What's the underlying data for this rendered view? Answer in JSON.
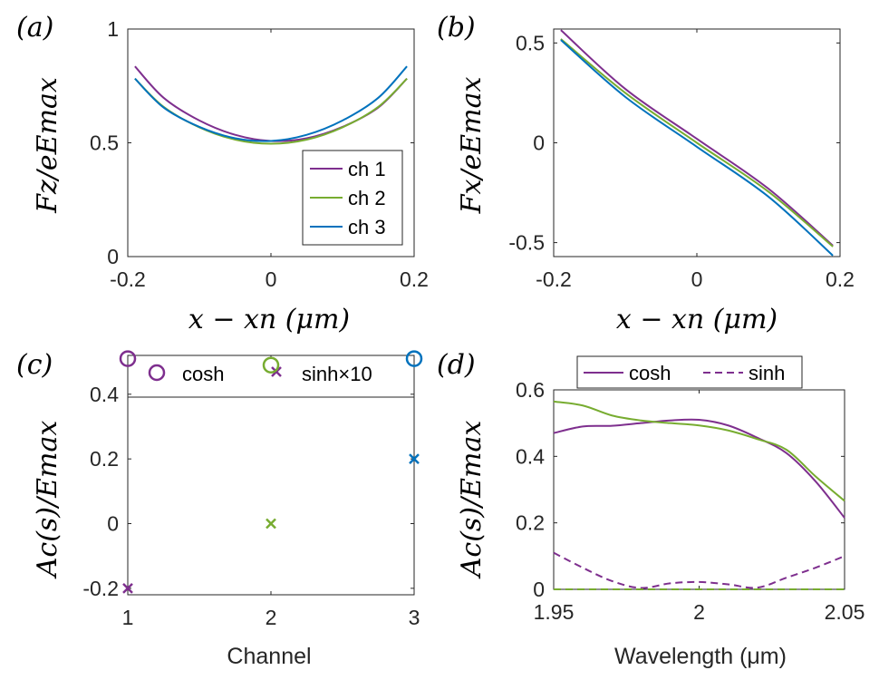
{
  "colors": {
    "ch1": "#7E2F8E",
    "ch2": "#77AC30",
    "ch3": "#0072BD",
    "axis": "#262626"
  },
  "chart_data": [
    {
      "id": "a",
      "panel_label": "(a)",
      "type": "line",
      "ylabel": "F_z/eE_max",
      "ylabel_display": "Fz/eEmax",
      "xlabel": "x − x_n (μm)",
      "xlabel_display": "x − xn (μm)",
      "xlim": [
        -0.2,
        0.2
      ],
      "ylim": [
        0,
        1
      ],
      "xticks": [
        -0.2,
        0,
        0.2
      ],
      "xtick_labels": [
        "-0.2",
        "0",
        "0.2"
      ],
      "yticks": [
        0,
        0.5,
        1
      ],
      "ytick_labels": [
        "0",
        "0.5",
        "1"
      ],
      "legend": {
        "placement": "bottom-right",
        "entries": [
          "ch 1",
          "ch 2",
          "ch 3"
        ]
      },
      "series": [
        {
          "name": "ch 1",
          "color": "ch1",
          "x": [
            -0.19,
            -0.15,
            -0.1,
            -0.05,
            0,
            0.05,
            0.1,
            0.15,
            0.19
          ],
          "y": [
            0.836,
            0.698,
            0.598,
            0.535,
            0.508,
            0.52,
            0.57,
            0.655,
            0.782
          ]
        },
        {
          "name": "ch 2",
          "color": "ch2",
          "x": [
            -0.19,
            -0.15,
            -0.1,
            -0.05,
            0,
            0.05,
            0.1,
            0.15,
            0.19
          ],
          "y": [
            0.782,
            0.658,
            0.568,
            0.514,
            0.496,
            0.514,
            0.568,
            0.658,
            0.782
          ]
        },
        {
          "name": "ch 3",
          "color": "ch3",
          "x": [
            -0.19,
            -0.15,
            -0.1,
            -0.05,
            0,
            0.05,
            0.1,
            0.15,
            0.19
          ],
          "y": [
            0.782,
            0.655,
            0.57,
            0.52,
            0.508,
            0.535,
            0.598,
            0.698,
            0.836
          ]
        }
      ]
    },
    {
      "id": "b",
      "panel_label": "(b)",
      "type": "line",
      "ylabel": "F_x/eE_max",
      "ylabel_display": "Fx/eEmax",
      "xlabel": "x − x_n (μm)",
      "xlabel_display": "x − xn (μm)",
      "xlim": [
        -0.2,
        0.2
      ],
      "ylim": [
        -0.57,
        0.57
      ],
      "xticks": [
        -0.2,
        0,
        0.2
      ],
      "xtick_labels": [
        "-0.2",
        "0",
        "0.2"
      ],
      "yticks": [
        -0.5,
        0,
        0.5
      ],
      "ytick_labels": [
        "-0.5",
        "0",
        "0.5"
      ],
      "series": [
        {
          "name": "ch 1",
          "color": "ch1",
          "x": [
            -0.19,
            -0.1,
            0,
            0.1,
            0.19
          ],
          "y": [
            0.565,
            0.27,
            0.02,
            -0.23,
            -0.515
          ]
        },
        {
          "name": "ch 2",
          "color": "ch2",
          "x": [
            -0.19,
            -0.1,
            0,
            0.1,
            0.19
          ],
          "y": [
            0.52,
            0.25,
            0.0,
            -0.245,
            -0.52
          ]
        },
        {
          "name": "ch 3",
          "color": "ch3",
          "x": [
            -0.19,
            -0.1,
            0,
            0.1,
            0.19
          ],
          "y": [
            0.515,
            0.23,
            -0.02,
            -0.27,
            -0.565
          ]
        }
      ]
    },
    {
      "id": "c",
      "panel_label": "(c)",
      "type": "scatter",
      "ylabel": "A_c(s)/E_max",
      "ylabel_display": "Ac(s)/Emax",
      "xlabel": "Channel",
      "xlim": [
        1,
        3
      ],
      "ylim": [
        -0.22,
        0.52
      ],
      "xticks": [
        1,
        2,
        3
      ],
      "xtick_labels": [
        "1",
        "2",
        "3"
      ],
      "yticks": [
        -0.2,
        0,
        0.2,
        0.4
      ],
      "ytick_labels": [
        "-0.2",
        "0",
        "0.2",
        "0.4"
      ],
      "legend": {
        "placement": "top",
        "entries": [
          "cosh",
          "sinh×10"
        ]
      },
      "series": [
        {
          "name": "cosh",
          "marker": "circle",
          "x": [
            1,
            2,
            3
          ],
          "y": [
            0.51,
            0.49,
            0.51
          ],
          "colors": [
            "ch1",
            "ch2",
            "ch3"
          ]
        },
        {
          "name": "sinh×10",
          "marker": "x",
          "x": [
            1,
            2,
            3
          ],
          "y": [
            -0.2,
            0.0,
            0.2
          ],
          "colors": [
            "ch1",
            "ch2",
            "ch3"
          ]
        }
      ]
    },
    {
      "id": "d",
      "panel_label": "(d)",
      "type": "line",
      "ylabel": "A_c(s)/E_max",
      "ylabel_display": "Ac(s)/Emax",
      "xlabel": "Wavelength (μm)",
      "xlim": [
        1.95,
        2.05
      ],
      "ylim": [
        0,
        0.6
      ],
      "xticks": [
        1.95,
        2,
        2.05
      ],
      "xtick_labels": [
        "1.95",
        "2",
        "2.05"
      ],
      "yticks": [
        0,
        0.2,
        0.4,
        0.6
      ],
      "ytick_labels": [
        "0",
        "0.2",
        "0.4",
        "0.6"
      ],
      "legend": {
        "placement": "top",
        "entries": [
          "cosh",
          "sinh"
        ]
      },
      "series": [
        {
          "name": "cosh ch 1",
          "color": "ch1",
          "style": "solid",
          "x": [
            1.95,
            1.96,
            1.97,
            1.98,
            1.99,
            2.0,
            2.01,
            2.02,
            2.03,
            2.04,
            2.05
          ],
          "y": [
            0.47,
            0.49,
            0.492,
            0.5,
            0.508,
            0.51,
            0.493,
            0.456,
            0.41,
            0.325,
            0.215
          ]
        },
        {
          "name": "cosh ch 2",
          "color": "ch2",
          "style": "solid",
          "x": [
            1.95,
            1.96,
            1.97,
            1.98,
            1.99,
            2.0,
            2.01,
            2.02,
            2.03,
            2.04,
            2.05
          ],
          "y": [
            0.565,
            0.553,
            0.523,
            0.508,
            0.5,
            0.493,
            0.478,
            0.452,
            0.42,
            0.34,
            0.266
          ]
        },
        {
          "name": "sinh ch 1",
          "color": "ch1",
          "style": "dashed",
          "x": [
            1.95,
            1.96,
            1.97,
            1.98,
            1.99,
            2.0,
            2.01,
            2.02,
            2.03,
            2.04,
            2.05
          ],
          "y": [
            0.11,
            0.065,
            0.025,
            0.004,
            0.018,
            0.022,
            0.015,
            0.005,
            0.035,
            0.065,
            0.1
          ]
        },
        {
          "name": "sinh ch 2",
          "color": "ch2",
          "style": "dashed",
          "x": [
            1.95,
            2.05
          ],
          "y": [
            0.0,
            0.0
          ]
        }
      ]
    }
  ]
}
